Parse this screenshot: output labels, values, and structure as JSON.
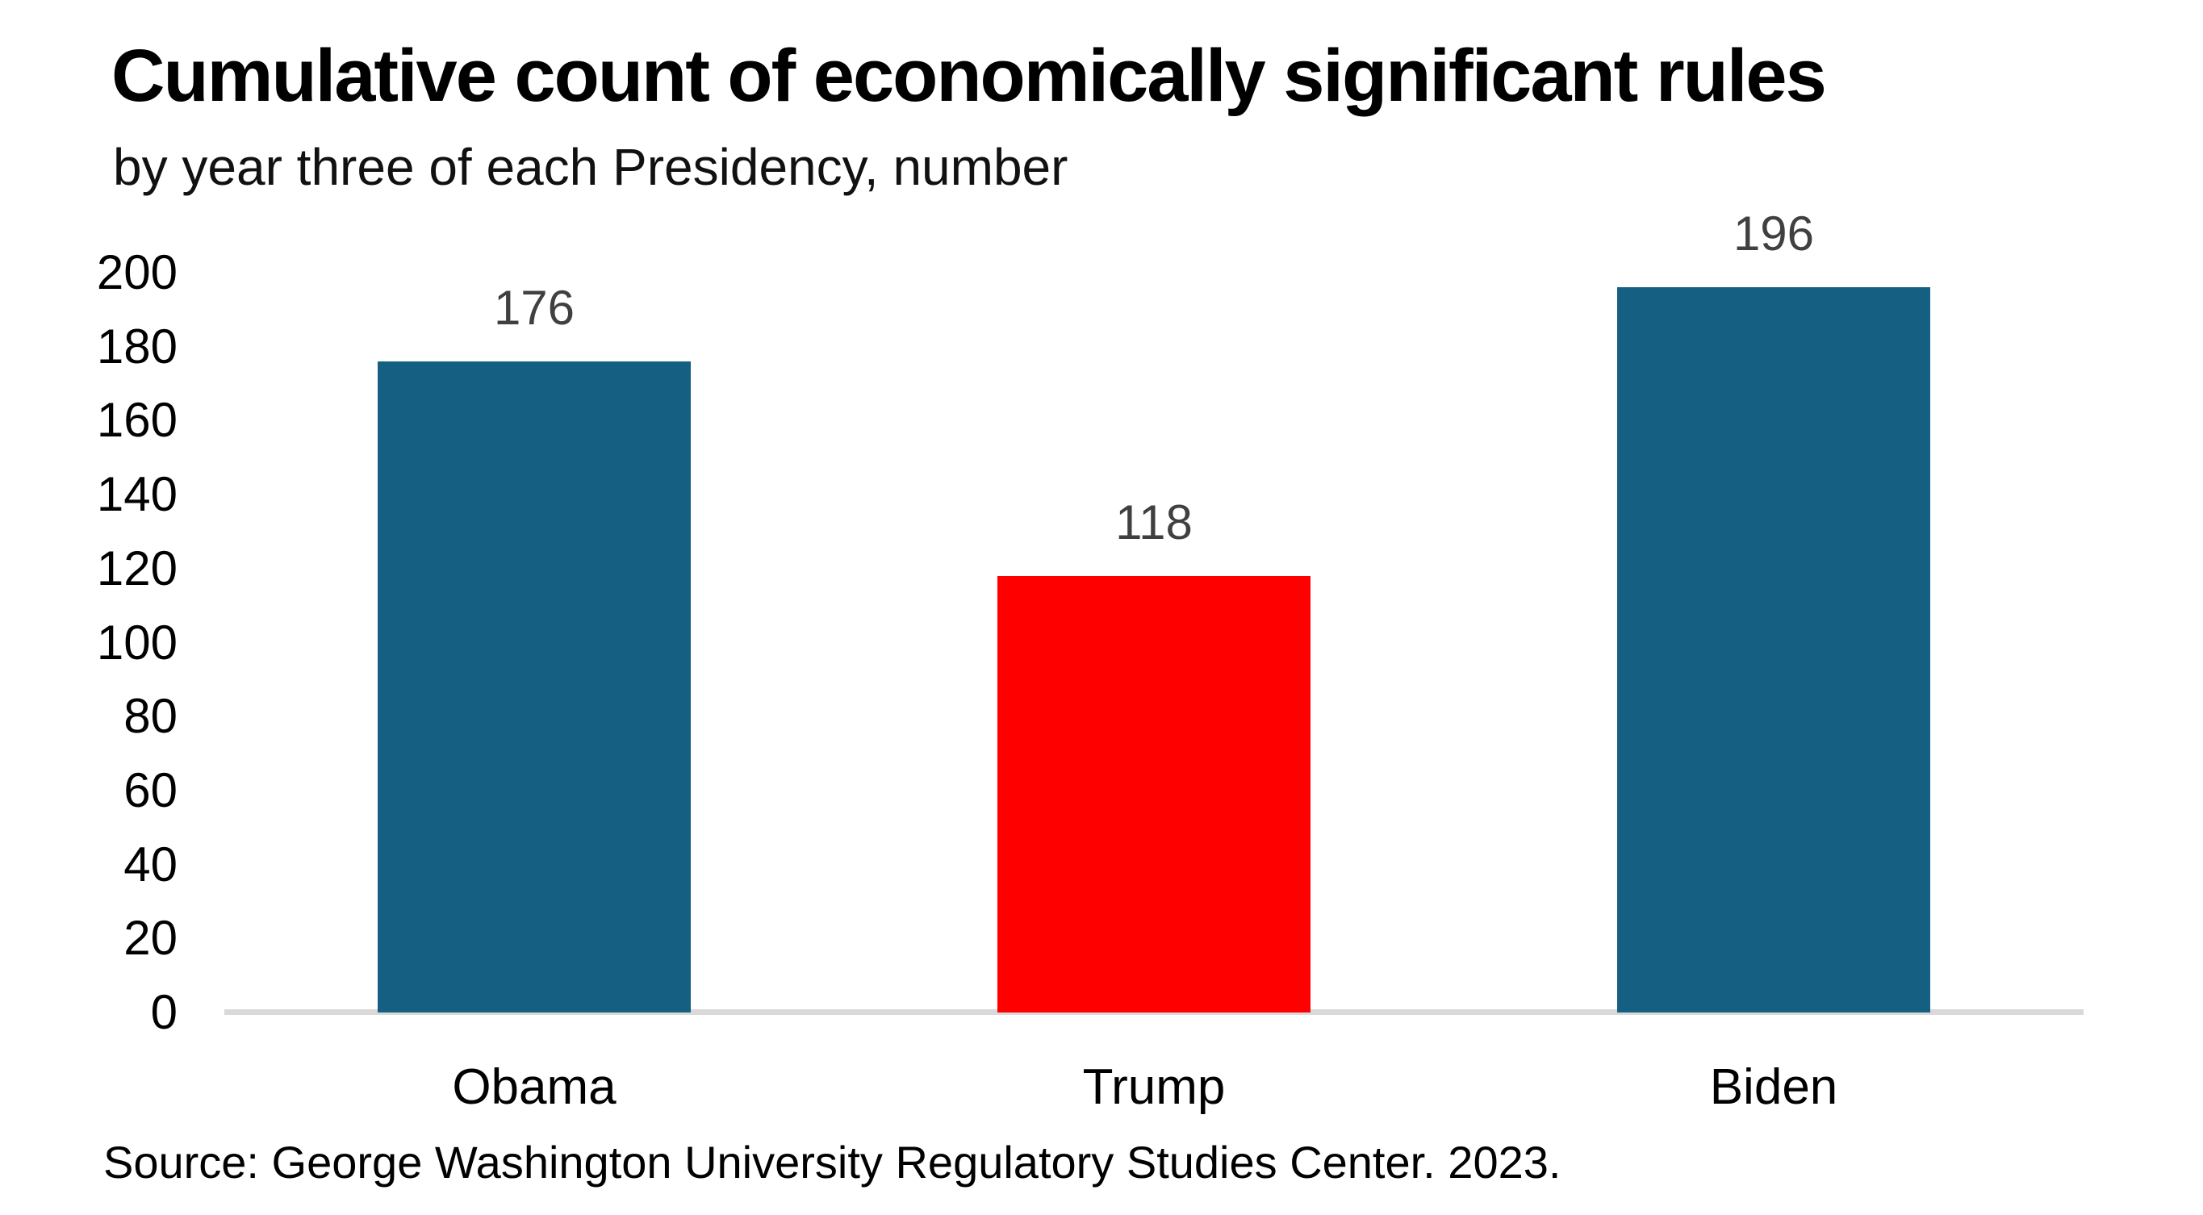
{
  "header": {
    "title": "Cumulative count of economically significant rules",
    "subtitle": "by year three of each Presidency, number"
  },
  "footer": {
    "source": "Source: George Washington University Regulatory Studies Center. 2023."
  },
  "chart_data": {
    "type": "bar",
    "title": "Cumulative count of economically significant rules",
    "subtitle": "by year three of each Presidency, number",
    "categories": [
      "Obama",
      "Trump",
      "Biden"
    ],
    "values": [
      176,
      118,
      196
    ],
    "bar_colors": [
      "#156082",
      "#ff0000",
      "#156082"
    ],
    "value_labels": [
      "176",
      "118",
      "196"
    ],
    "value_label_color": "#404040",
    "xlabel": "",
    "ylabel": "",
    "ylim": [
      0,
      200
    ],
    "yticks": [
      0,
      20,
      40,
      60,
      80,
      100,
      120,
      140,
      160,
      180,
      200
    ],
    "grid": false,
    "legend": false,
    "axis_line_color": "#d9d9d9",
    "source": "Source: George Washington University Regulatory Studies Center. 2023."
  }
}
